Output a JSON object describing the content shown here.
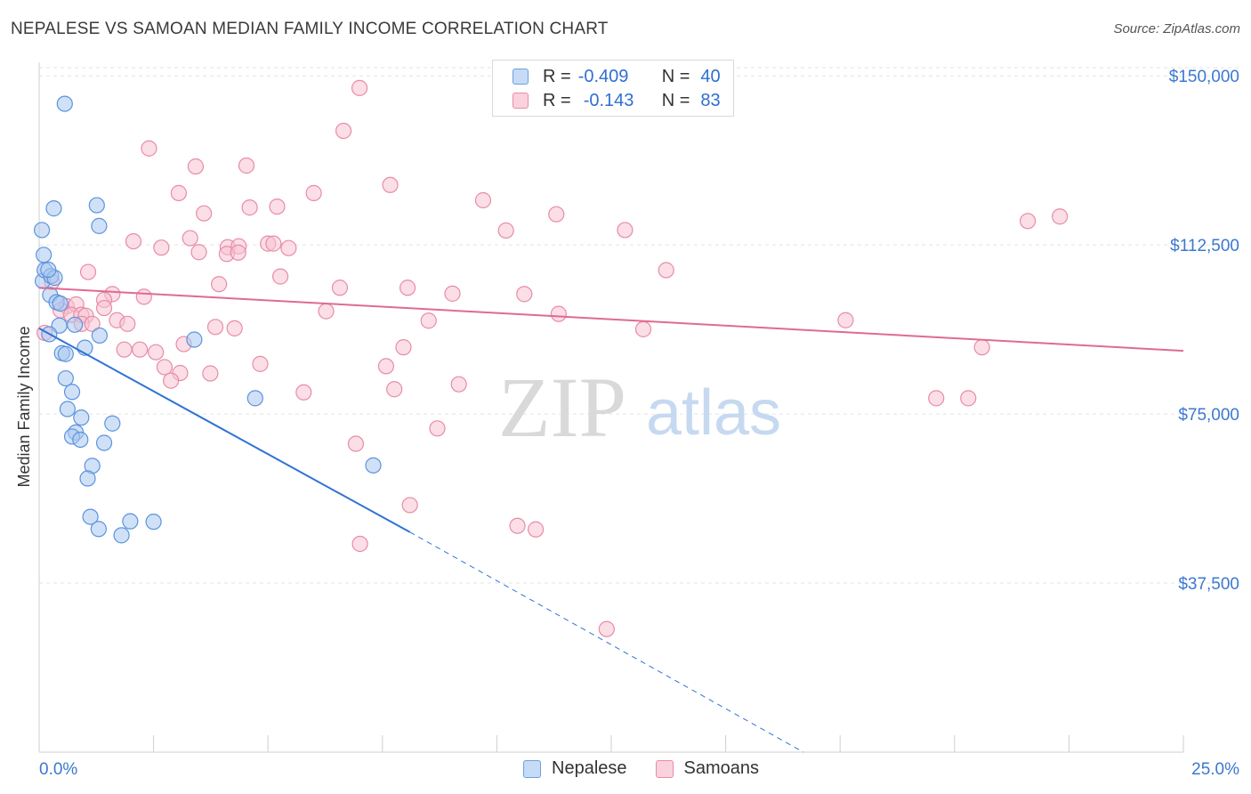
{
  "title": "NEPALESE VS SAMOAN MEDIAN FAMILY INCOME CORRELATION CHART",
  "source": "Source: ZipAtlas.com",
  "watermark": {
    "zip": "ZIP",
    "atlas": "atlas"
  },
  "legend": {
    "rows": [
      {
        "r_label": "R =",
        "r_value": "-0.409",
        "n_label": "N =",
        "n_value": "40",
        "color": "#a9c8f0",
        "border": "#6a9fe0"
      },
      {
        "r_label": "R =",
        "r_value": "-0.143",
        "n_label": "N =",
        "n_value": "83",
        "color": "#f8c2d2",
        "border": "#e98aa8"
      }
    ]
  },
  "bottom_legend": {
    "nepalese": "Nepalese",
    "samoans": "Samoans"
  },
  "colors": {
    "nepalese_fill": "#a9c8f0",
    "nepalese_stroke": "#5b93dd",
    "nepalese_line": "#2f72d6",
    "samoans_fill": "#f8c2d2",
    "samoans_stroke": "#e78ca9",
    "samoans_line": "#e06a93",
    "tick_label": "#3c78d0",
    "grid": "#e3e3e3"
  },
  "chart_data": {
    "type": "scatter",
    "title": "NEPALESE VS SAMOAN MEDIAN FAMILY INCOME CORRELATION CHART",
    "xlabel": "",
    "ylabel": "Median Family Income",
    "xlim": [
      0,
      25
    ],
    "ylim": [
      0,
      153000
    ],
    "x_tick_labels": [
      "0.0%",
      "25.0%"
    ],
    "y_ticks": [
      37500,
      75000,
      112500,
      150000
    ],
    "y_tick_labels": [
      "$37,500",
      "$75,000",
      "$112,500",
      "$150,000"
    ],
    "grid": true,
    "series": [
      {
        "name": "Nepalese",
        "points": [
          [
            0.08,
            104500
          ],
          [
            0.56,
            143800
          ],
          [
            0.32,
            120600
          ],
          [
            1.26,
            121300
          ],
          [
            1.31,
            116700
          ],
          [
            0.06,
            115800
          ],
          [
            0.1,
            110300
          ],
          [
            0.12,
            106900
          ],
          [
            0.26,
            105600
          ],
          [
            0.34,
            105200
          ],
          [
            0.24,
            101400
          ],
          [
            0.38,
            99800
          ],
          [
            0.46,
            99500
          ],
          [
            0.78,
            94800
          ],
          [
            0.44,
            94600
          ],
          [
            0.22,
            92700
          ],
          [
            1.32,
            92400
          ],
          [
            3.39,
            91500
          ],
          [
            1.0,
            89700
          ],
          [
            0.5,
            88500
          ],
          [
            0.58,
            88300
          ],
          [
            0.58,
            82900
          ],
          [
            0.72,
            79900
          ],
          [
            0.62,
            76100
          ],
          [
            0.92,
            74200
          ],
          [
            1.6,
            72900
          ],
          [
            0.8,
            70900
          ],
          [
            0.72,
            70000
          ],
          [
            0.9,
            69300
          ],
          [
            1.42,
            68600
          ],
          [
            4.72,
            78500
          ],
          [
            7.3,
            63600
          ],
          [
            1.16,
            63500
          ],
          [
            1.06,
            60700
          ],
          [
            1.12,
            52200
          ],
          [
            1.99,
            51200
          ],
          [
            2.5,
            51100
          ],
          [
            1.3,
            49500
          ],
          [
            1.8,
            48100
          ],
          [
            0.2,
            107000
          ]
        ]
      },
      {
        "name": "Samoans",
        "points": [
          [
            7.0,
            147300
          ],
          [
            6.65,
            137800
          ],
          [
            2.4,
            133900
          ],
          [
            3.42,
            129900
          ],
          [
            4.53,
            130100
          ],
          [
            3.05,
            124000
          ],
          [
            6.0,
            124000
          ],
          [
            7.67,
            125800
          ],
          [
            9.7,
            122400
          ],
          [
            3.6,
            119500
          ],
          [
            4.6,
            120800
          ],
          [
            5.2,
            121000
          ],
          [
            11.3,
            119300
          ],
          [
            21.6,
            117800
          ],
          [
            22.3,
            118800
          ],
          [
            10.2,
            115700
          ],
          [
            12.8,
            115800
          ],
          [
            2.06,
            113300
          ],
          [
            2.67,
            111900
          ],
          [
            3.3,
            114000
          ],
          [
            3.49,
            110900
          ],
          [
            4.12,
            112000
          ],
          [
            4.36,
            112200
          ],
          [
            4.1,
            110500
          ],
          [
            4.35,
            110800
          ],
          [
            5.0,
            112800
          ],
          [
            5.12,
            112800
          ],
          [
            5.45,
            111800
          ],
          [
            1.07,
            106500
          ],
          [
            5.27,
            105500
          ],
          [
            13.7,
            106900
          ],
          [
            3.93,
            103800
          ],
          [
            6.57,
            103000
          ],
          [
            8.05,
            103000
          ],
          [
            9.03,
            101700
          ],
          [
            10.6,
            101600
          ],
          [
            1.6,
            101600
          ],
          [
            2.29,
            101000
          ],
          [
            1.42,
            100300
          ],
          [
            0.6,
            98900
          ],
          [
            0.81,
            99300
          ],
          [
            1.42,
            98500
          ],
          [
            6.27,
            97800
          ],
          [
            0.47,
            98000
          ],
          [
            0.7,
            97000
          ],
          [
            0.92,
            97000
          ],
          [
            1.02,
            96800
          ],
          [
            11.35,
            97200
          ],
          [
            8.51,
            95700
          ],
          [
            17.62,
            95800
          ],
          [
            1.7,
            95800
          ],
          [
            0.93,
            95000
          ],
          [
            1.16,
            95000
          ],
          [
            1.93,
            95000
          ],
          [
            3.85,
            94300
          ],
          [
            4.27,
            94000
          ],
          [
            13.2,
            93800
          ],
          [
            0.12,
            93000
          ],
          [
            3.16,
            90500
          ],
          [
            7.96,
            89800
          ],
          [
            20.6,
            89800
          ],
          [
            1.86,
            89300
          ],
          [
            2.2,
            89300
          ],
          [
            2.55,
            88700
          ],
          [
            4.83,
            86100
          ],
          [
            7.58,
            85600
          ],
          [
            2.74,
            85400
          ],
          [
            3.08,
            84100
          ],
          [
            3.74,
            84000
          ],
          [
            2.88,
            82400
          ],
          [
            7.76,
            80500
          ],
          [
            9.17,
            81600
          ],
          [
            5.78,
            79800
          ],
          [
            19.6,
            78500
          ],
          [
            20.3,
            78500
          ],
          [
            8.7,
            71800
          ],
          [
            6.92,
            68400
          ],
          [
            8.1,
            54800
          ],
          [
            10.45,
            50200
          ],
          [
            10.85,
            49400
          ],
          [
            7.01,
            46200
          ],
          [
            12.4,
            27300
          ],
          [
            0.28,
            104300
          ]
        ]
      }
    ],
    "trend_lines": [
      {
        "series": "Nepalese",
        "x": [
          0,
          8.1
        ],
        "y": [
          94000,
          48800
        ],
        "dashed_to": [
          16.7,
          0
        ]
      },
      {
        "series": "Samoans",
        "x": [
          0,
          25
        ],
        "y": [
          103000,
          89000
        ]
      }
    ]
  }
}
